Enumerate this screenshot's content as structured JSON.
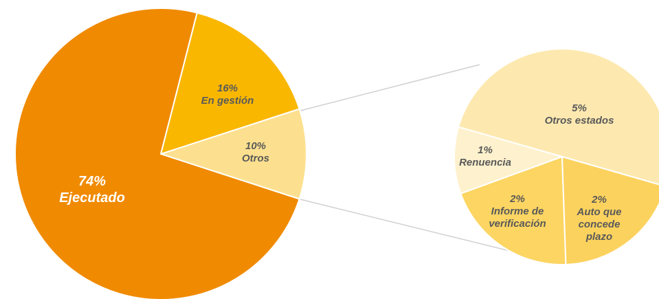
{
  "chart_data": [
    {
      "type": "pie",
      "categories": [
        "Otros",
        "En gestión",
        "Ejecutado"
      ],
      "values": [
        10,
        16,
        74
      ],
      "value_labels": [
        "10%",
        "16%",
        "74%"
      ],
      "colors": [
        "#fde08f",
        "#f9b700",
        "#f08a00"
      ]
    },
    {
      "type": "pie",
      "categories": [
        "Otros estados",
        "Renuencia",
        "Informe de verificación",
        "Auto que concede plazo"
      ],
      "values": [
        5,
        1,
        2,
        2
      ],
      "value_labels": [
        "5%",
        "1%",
        "2%",
        "2%"
      ],
      "colors": [
        "#fde9b0",
        "#fef1cd",
        "#fcd562",
        "#fcd25e"
      ]
    }
  ]
}
